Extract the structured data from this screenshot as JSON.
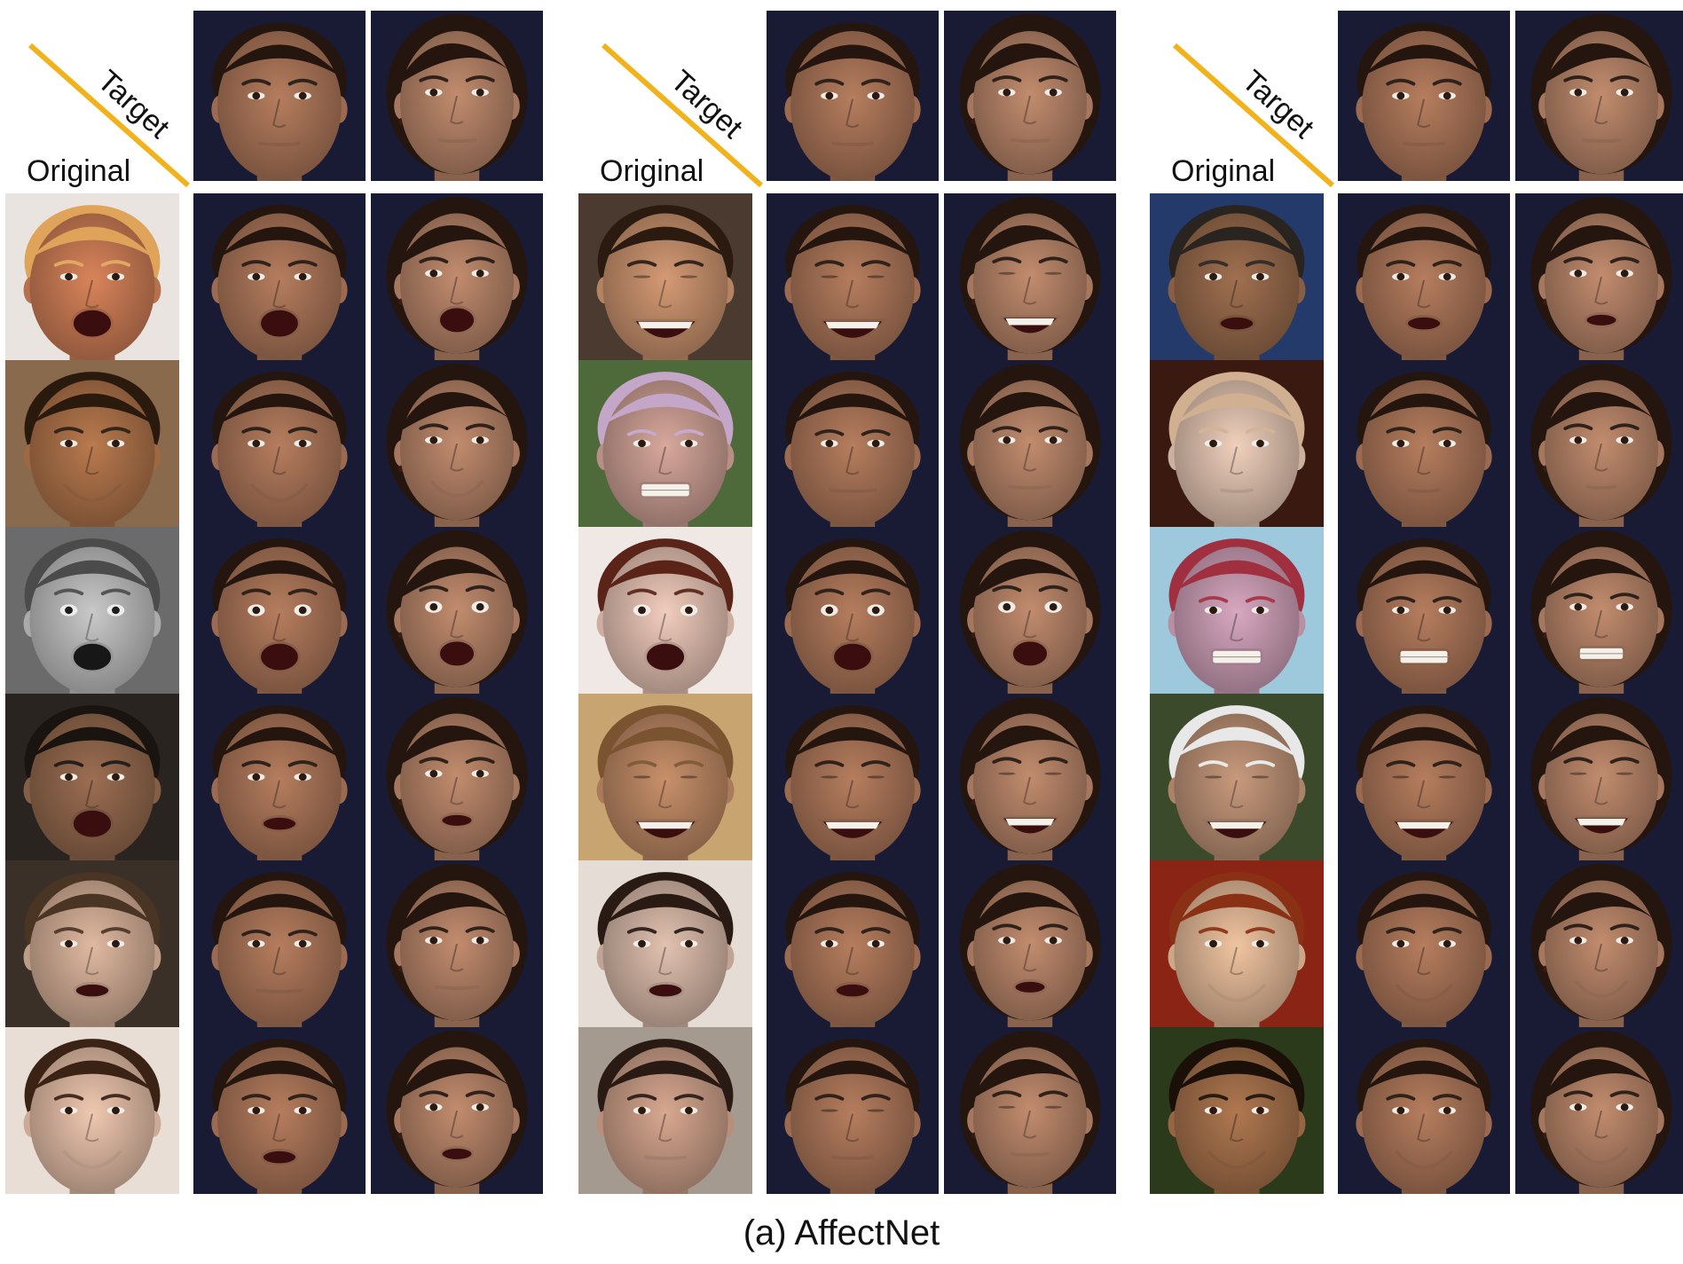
{
  "labels": {
    "target": "Target",
    "original": "Original",
    "caption": "(a) AffectNet"
  },
  "colors": {
    "diagonal_line": "#f2b21b",
    "target_background": "#191a33",
    "skin_male": "#b67d5e",
    "skin_female": "#c28c6e",
    "hair_dark": "#24160f"
  },
  "target_identities": [
    "male-target",
    "female-target"
  ],
  "groups": [
    {
      "rows": [
        {
          "original": {
            "bg": "#e9e4df",
            "skin": "#d9845a",
            "hair": "#e0a35a",
            "expr": "open-mouth"
          },
          "expr": "open-mouth"
        },
        {
          "original": {
            "bg": "#8a6a4c",
            "skin": "#b97a4e",
            "hair": "#2a1a0e",
            "expr": "smile"
          },
          "expr": "smirk"
        },
        {
          "original": {
            "bg": "#6b6b6b",
            "skin": "#c9c9c9",
            "hair": "#4b4b4b",
            "expr": "surprise",
            "gray": true
          },
          "expr": "surprise"
        },
        {
          "original": {
            "bg": "#2a2420",
            "skin": "#9c6e52",
            "hair": "#1a1410",
            "expr": "open-mouth"
          },
          "expr": "talk"
        },
        {
          "original": {
            "bg": "#3a3028",
            "skin": "#e0b9a0",
            "hair": "#4a3424",
            "expr": "talk"
          },
          "expr": "disgust"
        },
        {
          "original": {
            "bg": "#e8ded5",
            "skin": "#f0c8b0",
            "hair": "#3a2214",
            "expr": "smile"
          },
          "expr": "talk"
        }
      ]
    },
    {
      "rows": [
        {
          "original": {
            "bg": "#4a3a30",
            "skin": "#d49a74",
            "hair": "#2a1a10",
            "expr": "laugh"
          },
          "expr": "laugh"
        },
        {
          "original": {
            "bg": "#4e6a3a",
            "skin": "#d8a89c",
            "hair": "#c4a6c8",
            "expr": "grimace"
          },
          "expr": "disgust"
        },
        {
          "original": {
            "bg": "#f0e8e4",
            "skin": "#f2cdbd",
            "hair": "#5a2418",
            "expr": "surprise"
          },
          "expr": "surprise"
        },
        {
          "original": {
            "bg": "#c8a470",
            "skin": "#c8906a",
            "hair": "#7a5430",
            "expr": "laugh"
          },
          "expr": "laugh"
        },
        {
          "original": {
            "bg": "#e6dcd6",
            "skin": "#e2c2b0",
            "hair": "#2a1a14",
            "expr": "talk"
          },
          "expr": "talk"
        },
        {
          "original": {
            "bg": "#a49a90",
            "skin": "#d8a890",
            "hair": "#2a1a14",
            "expr": "neutral"
          },
          "expr": "eyes-closed"
        }
      ]
    },
    {
      "rows": [
        {
          "original": {
            "bg": "#243a6a",
            "skin": "#a07050",
            "hair": "#2a2420",
            "expr": "talk"
          },
          "expr": "talk"
        },
        {
          "original": {
            "bg": "#3a1a10",
            "skin": "#f0d0bc",
            "hair": "#d0b090",
            "expr": "pout"
          },
          "expr": "pout"
        },
        {
          "original": {
            "bg": "#9ec8dc",
            "skin": "#d8a8c0",
            "hair": "#a03040",
            "expr": "grimace"
          },
          "expr": "grimace"
        },
        {
          "original": {
            "bg": "#3a4a2a",
            "skin": "#c89a7c",
            "hair": "#e8e8e8",
            "expr": "laugh"
          },
          "expr": "laugh"
        },
        {
          "original": {
            "bg": "#8a2414",
            "skin": "#f0c4a0",
            "hair": "#8a3014",
            "expr": "smile"
          },
          "expr": "smile"
        },
        {
          "original": {
            "bg": "#2a3a1a",
            "skin": "#b07850",
            "hair": "#1a1008",
            "expr": "smile"
          },
          "expr": "smile"
        }
      ]
    }
  ]
}
